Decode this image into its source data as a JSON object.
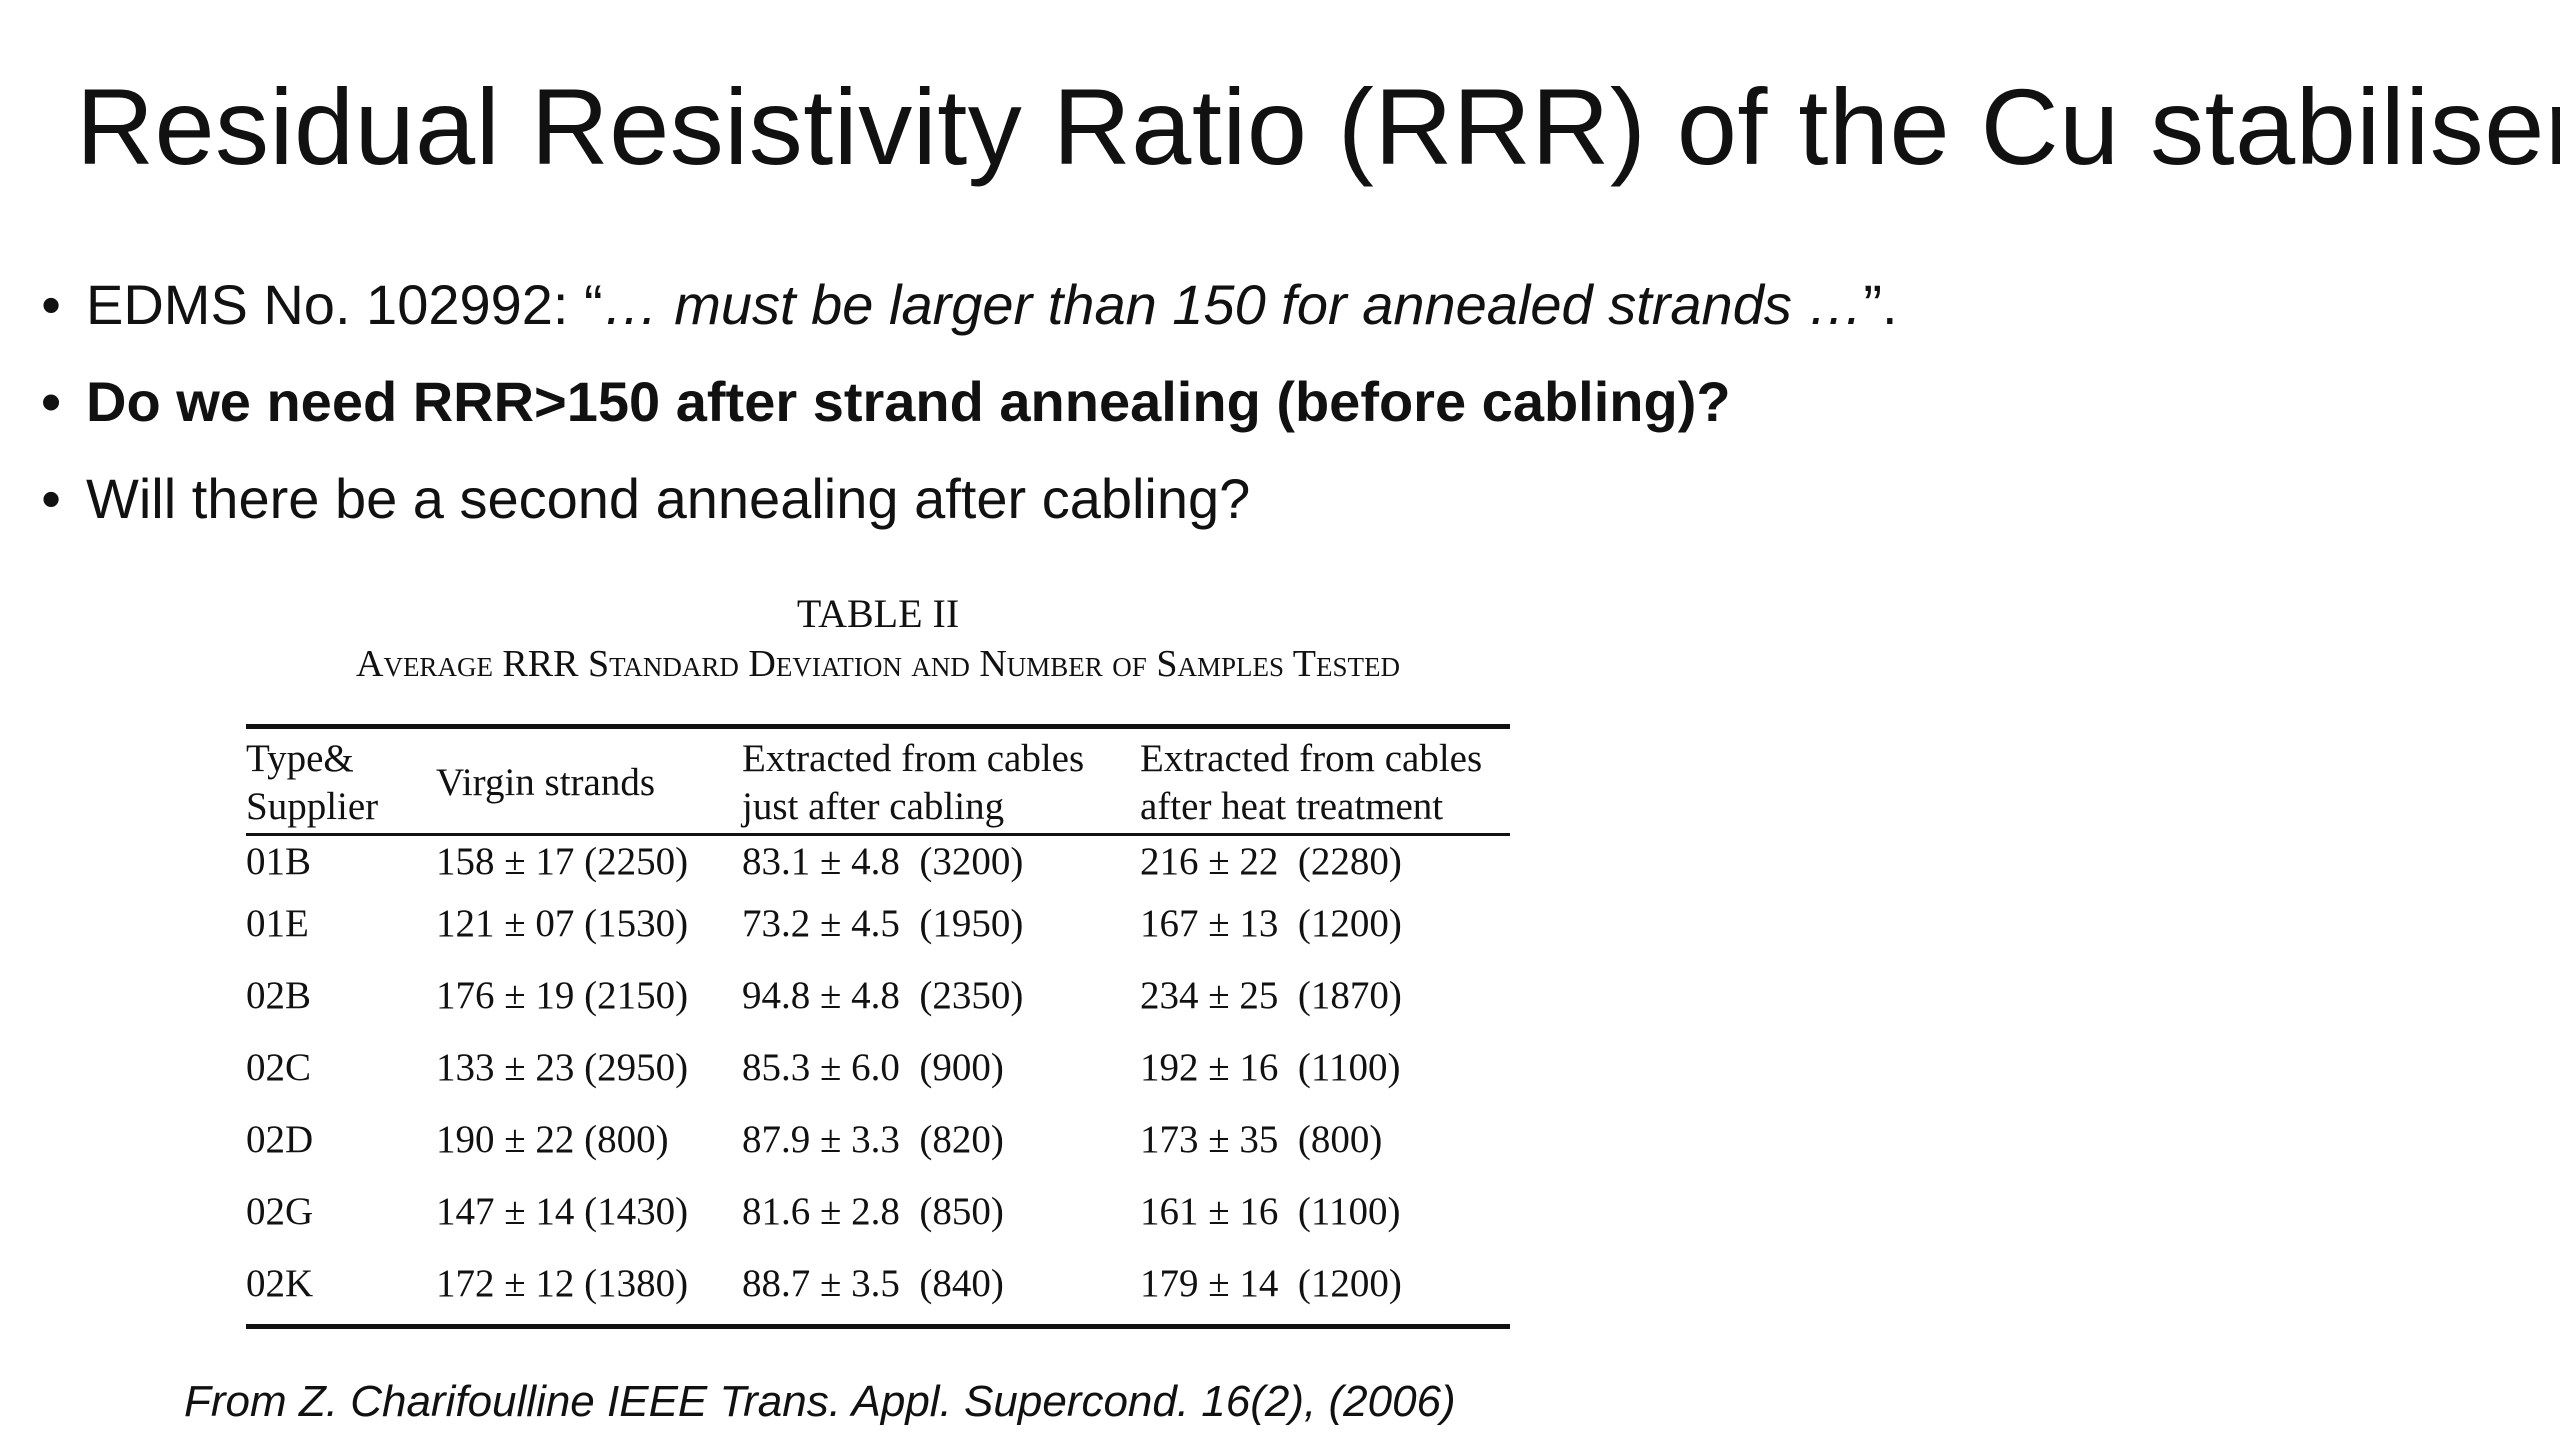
{
  "slide": {
    "title": "Residual Resistivity Ratio (RRR) of the Cu stabiliser",
    "bullet_glyph": "•",
    "bullets": [
      {
        "prefix": "EDMS No. 102992: “",
        "emphasis": "… must be larger than 150 for annealed strands …",
        "suffix": "”."
      },
      {
        "text": "Do we need RRR>150 after strand annealing (before cabling)?"
      },
      {
        "text": "Will there be a second annealing after cabling?"
      }
    ]
  },
  "table": {
    "heading": "TABLE II",
    "caption": "Average RRR Standard Deviation and Number of Samples Tested",
    "headers": [
      [
        "Type&",
        "Supplier"
      ],
      [
        "Virgin strands"
      ],
      [
        "Extracted from cables",
        "just after cabling"
      ],
      [
        "Extracted from cables",
        "after heat treatment"
      ]
    ],
    "rows": [
      [
        "01B",
        "158 ± 17 (2250)",
        "83.1 ± 4.8  (3200)",
        "216 ± 22  (2280)"
      ],
      [
        "01E",
        "121 ± 07 (1530)",
        "73.2 ± 4.5  (1950)",
        "167 ± 13  (1200)"
      ],
      [
        "02B",
        "176 ± 19 (2150)",
        "94.8 ± 4.8  (2350)",
        "234 ± 25  (1870)"
      ],
      [
        "02C",
        "133 ± 23 (2950)",
        "85.3 ± 6.0  (900)",
        "192 ± 16  (1100)"
      ],
      [
        "02D",
        "190 ± 22 (800)",
        "87.9 ± 3.3  (820)",
        "173 ± 35  (800)"
      ],
      [
        "02G",
        "147 ± 14 (1430)",
        "81.6 ± 2.8  (850)",
        "161 ± 16  (1100)"
      ],
      [
        "02K",
        "172 ± 12 (1380)",
        "88.7 ± 3.5  (840)",
        "179 ± 14  (1200)"
      ]
    ]
  },
  "source_note": "From Z. Charifoulline IEEE Trans. Appl. Supercond. 16(2), (2006)"
}
